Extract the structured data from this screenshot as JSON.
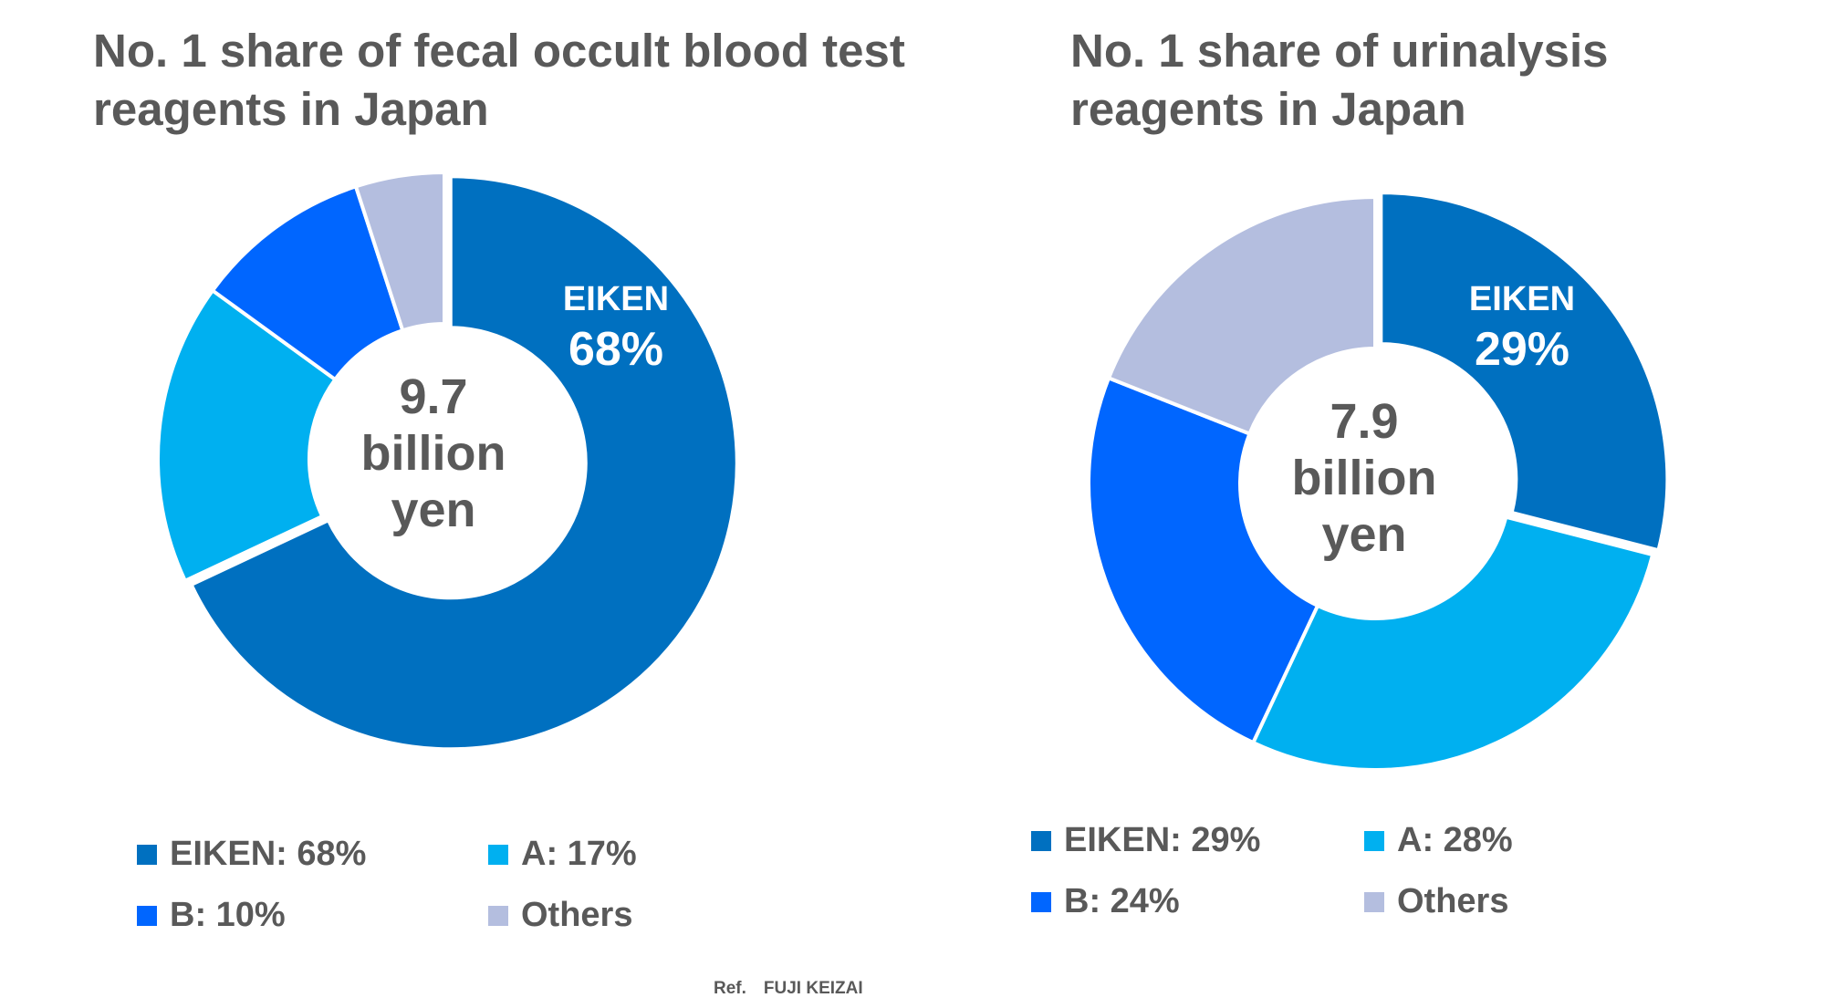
{
  "chart_data": [
    {
      "type": "pie",
      "variant": "donut",
      "title": "No. 1 share of fecal occult blood test reagents in Japan",
      "center_label": [
        "9.7",
        "billion",
        "yen"
      ],
      "categories": [
        "EIKEN",
        "A",
        "B",
        "Others"
      ],
      "values": [
        68,
        17,
        10,
        5
      ],
      "colors": [
        "#0070C0",
        "#00B0F0",
        "#0066FF",
        "#B4BEDF"
      ],
      "slice_label": {
        "name": "EIKEN",
        "value": "68%"
      },
      "legend": [
        "EIKEN: 68%",
        "A: 17%",
        "B: 10%",
        "Others"
      ]
    },
    {
      "type": "pie",
      "variant": "donut",
      "title": "No. 1 share of urinalysis reagents in Japan",
      "center_label": [
        "7.9",
        "billion",
        "yen"
      ],
      "categories": [
        "EIKEN",
        "A",
        "B",
        "Others"
      ],
      "values": [
        29,
        28,
        24,
        19
      ],
      "colors": [
        "#0070C0",
        "#00B0F0",
        "#0066FF",
        "#B4BEDF"
      ],
      "slice_label": {
        "name": "EIKEN",
        "value": "29%"
      },
      "legend": [
        "EIKEN: 29%",
        "A: 28%",
        "B: 24%",
        "Others"
      ]
    }
  ],
  "footer": {
    "ref": "Ref.　FUJI KEIZAI"
  }
}
